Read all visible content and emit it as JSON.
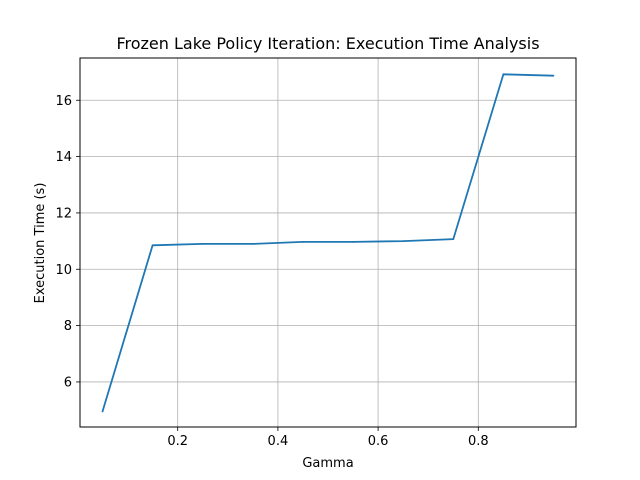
{
  "chart_data": {
    "type": "line",
    "title": "Frozen Lake Policy Iteration: Execution Time Analysis",
    "xlabel": "Gamma",
    "ylabel": "Execution Time (s)",
    "xlim": [
      0.005,
      0.995
    ],
    "ylim": [
      4.4,
      17.5
    ],
    "xticks": [
      0.2,
      0.4,
      0.6,
      0.8
    ],
    "xtick_labels": [
      "0.2",
      "0.4",
      "0.6",
      "0.8"
    ],
    "yticks": [
      6,
      8,
      10,
      12,
      14,
      16
    ],
    "ytick_labels": [
      "6",
      "8",
      "10",
      "12",
      "14",
      "16"
    ],
    "grid": true,
    "series": [
      {
        "color": "#1f77b4",
        "x": [
          0.05,
          0.15,
          0.25,
          0.35,
          0.45,
          0.55,
          0.65,
          0.75,
          0.85,
          0.95
        ],
        "y": [
          4.95,
          10.85,
          10.9,
          10.9,
          10.97,
          10.97,
          11.0,
          11.07,
          16.92,
          16.87
        ]
      }
    ]
  }
}
